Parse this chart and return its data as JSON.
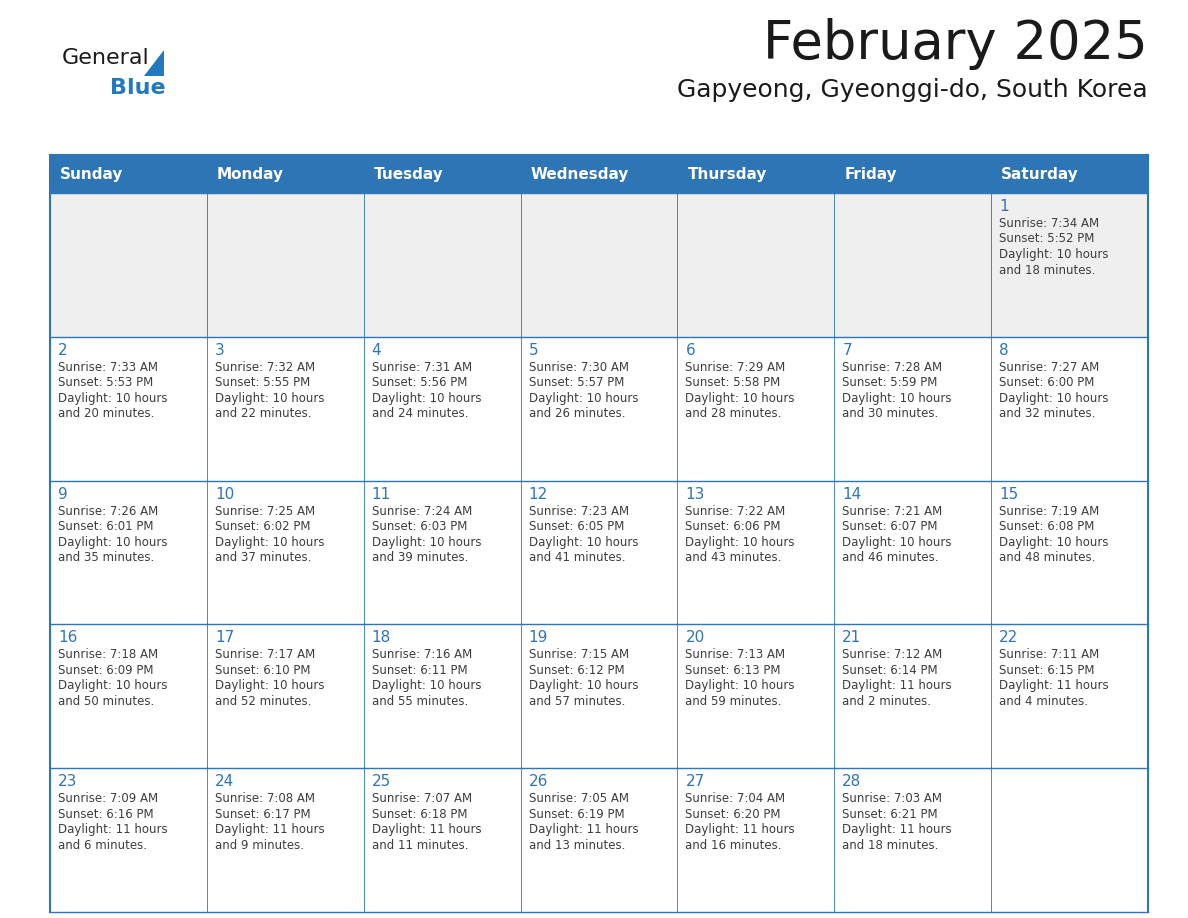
{
  "title": "February 2025",
  "subtitle": "Gapyeong, Gyeonggi-do, South Korea",
  "header_bg_color": "#2E75B6",
  "header_text_color": "#FFFFFF",
  "cell_bg_white": "#FFFFFF",
  "cell_bg_gray": "#EFEFEF",
  "border_color": "#2E75B6",
  "day_number_color": "#2E75B6",
  "info_text_color": "#3D3D3D",
  "title_color": "#1A1A1A",
  "subtitle_color": "#1A1A1A",
  "days_of_week": [
    "Sunday",
    "Monday",
    "Tuesday",
    "Wednesday",
    "Thursday",
    "Friday",
    "Saturday"
  ],
  "weeks": [
    [
      {
        "day": "",
        "info": ""
      },
      {
        "day": "",
        "info": ""
      },
      {
        "day": "",
        "info": ""
      },
      {
        "day": "",
        "info": ""
      },
      {
        "day": "",
        "info": ""
      },
      {
        "day": "",
        "info": ""
      },
      {
        "day": "1",
        "info": "Sunrise: 7:34 AM\nSunset: 5:52 PM\nDaylight: 10 hours\nand 18 minutes."
      }
    ],
    [
      {
        "day": "2",
        "info": "Sunrise: 7:33 AM\nSunset: 5:53 PM\nDaylight: 10 hours\nand 20 minutes."
      },
      {
        "day": "3",
        "info": "Sunrise: 7:32 AM\nSunset: 5:55 PM\nDaylight: 10 hours\nand 22 minutes."
      },
      {
        "day": "4",
        "info": "Sunrise: 7:31 AM\nSunset: 5:56 PM\nDaylight: 10 hours\nand 24 minutes."
      },
      {
        "day": "5",
        "info": "Sunrise: 7:30 AM\nSunset: 5:57 PM\nDaylight: 10 hours\nand 26 minutes."
      },
      {
        "day": "6",
        "info": "Sunrise: 7:29 AM\nSunset: 5:58 PM\nDaylight: 10 hours\nand 28 minutes."
      },
      {
        "day": "7",
        "info": "Sunrise: 7:28 AM\nSunset: 5:59 PM\nDaylight: 10 hours\nand 30 minutes."
      },
      {
        "day": "8",
        "info": "Sunrise: 7:27 AM\nSunset: 6:00 PM\nDaylight: 10 hours\nand 32 minutes."
      }
    ],
    [
      {
        "day": "9",
        "info": "Sunrise: 7:26 AM\nSunset: 6:01 PM\nDaylight: 10 hours\nand 35 minutes."
      },
      {
        "day": "10",
        "info": "Sunrise: 7:25 AM\nSunset: 6:02 PM\nDaylight: 10 hours\nand 37 minutes."
      },
      {
        "day": "11",
        "info": "Sunrise: 7:24 AM\nSunset: 6:03 PM\nDaylight: 10 hours\nand 39 minutes."
      },
      {
        "day": "12",
        "info": "Sunrise: 7:23 AM\nSunset: 6:05 PM\nDaylight: 10 hours\nand 41 minutes."
      },
      {
        "day": "13",
        "info": "Sunrise: 7:22 AM\nSunset: 6:06 PM\nDaylight: 10 hours\nand 43 minutes."
      },
      {
        "day": "14",
        "info": "Sunrise: 7:21 AM\nSunset: 6:07 PM\nDaylight: 10 hours\nand 46 minutes."
      },
      {
        "day": "15",
        "info": "Sunrise: 7:19 AM\nSunset: 6:08 PM\nDaylight: 10 hours\nand 48 minutes."
      }
    ],
    [
      {
        "day": "16",
        "info": "Sunrise: 7:18 AM\nSunset: 6:09 PM\nDaylight: 10 hours\nand 50 minutes."
      },
      {
        "day": "17",
        "info": "Sunrise: 7:17 AM\nSunset: 6:10 PM\nDaylight: 10 hours\nand 52 minutes."
      },
      {
        "day": "18",
        "info": "Sunrise: 7:16 AM\nSunset: 6:11 PM\nDaylight: 10 hours\nand 55 minutes."
      },
      {
        "day": "19",
        "info": "Sunrise: 7:15 AM\nSunset: 6:12 PM\nDaylight: 10 hours\nand 57 minutes."
      },
      {
        "day": "20",
        "info": "Sunrise: 7:13 AM\nSunset: 6:13 PM\nDaylight: 10 hours\nand 59 minutes."
      },
      {
        "day": "21",
        "info": "Sunrise: 7:12 AM\nSunset: 6:14 PM\nDaylight: 11 hours\nand 2 minutes."
      },
      {
        "day": "22",
        "info": "Sunrise: 7:11 AM\nSunset: 6:15 PM\nDaylight: 11 hours\nand 4 minutes."
      }
    ],
    [
      {
        "day": "23",
        "info": "Sunrise: 7:09 AM\nSunset: 6:16 PM\nDaylight: 11 hours\nand 6 minutes."
      },
      {
        "day": "24",
        "info": "Sunrise: 7:08 AM\nSunset: 6:17 PM\nDaylight: 11 hours\nand 9 minutes."
      },
      {
        "day": "25",
        "info": "Sunrise: 7:07 AM\nSunset: 6:18 PM\nDaylight: 11 hours\nand 11 minutes."
      },
      {
        "day": "26",
        "info": "Sunrise: 7:05 AM\nSunset: 6:19 PM\nDaylight: 11 hours\nand 13 minutes."
      },
      {
        "day": "27",
        "info": "Sunrise: 7:04 AM\nSunset: 6:20 PM\nDaylight: 11 hours\nand 16 minutes."
      },
      {
        "day": "28",
        "info": "Sunrise: 7:03 AM\nSunset: 6:21 PM\nDaylight: 11 hours\nand 18 minutes."
      },
      {
        "day": "",
        "info": ""
      }
    ]
  ],
  "logo_general_color": "#1A1A1A",
  "logo_blue_color": "#2279BD"
}
